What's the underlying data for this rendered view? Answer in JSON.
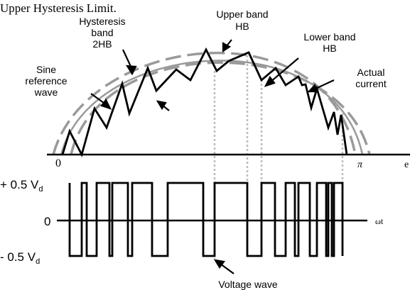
{
  "header_text": "Upper Hysteresis Limit.",
  "labels": {
    "hysteresis_band": [
      "Hysteresis",
      "band",
      "2HB"
    ],
    "sine_reference": [
      "Sine",
      "reference",
      "wave"
    ],
    "upper_band": [
      "Upper band",
      "HB"
    ],
    "lower_band": [
      "Lower band",
      "HB"
    ],
    "actual_current": [
      "Actual",
      "current"
    ],
    "voltage_wave": "Voltage wave"
  },
  "axis": {
    "origin": "0",
    "pi": "π",
    "theta_cut": "e",
    "omega_t": "ωt"
  },
  "voltage_levels": {
    "pos_prefix": "+ 0.5 V",
    "pos_sub": "d",
    "zero": "0",
    "neg_prefix": "- 0.5 V",
    "neg_sub": "d"
  },
  "colors": {
    "band": "#9a9a9a",
    "trace": "#000000",
    "guide": "#bdbdbd"
  }
}
